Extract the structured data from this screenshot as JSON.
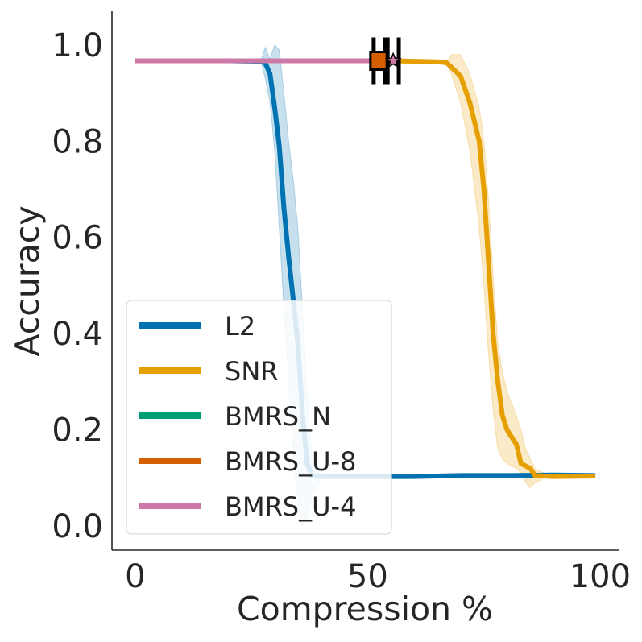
{
  "chart_data": {
    "type": "line",
    "xlabel": "Compression %",
    "ylabel": "Accuracy",
    "xlim": [
      -5,
      104
    ],
    "ylim": [
      -0.05,
      1.07
    ],
    "xticks": [
      0,
      50,
      100
    ],
    "yticks": [
      0.0,
      0.2,
      0.4,
      0.6,
      0.8,
      1.0
    ],
    "grid": false,
    "legend_position": "lower-left",
    "series": [
      {
        "name": "L2",
        "color": "#0072b2",
        "points": [
          [
            0,
            0.967
          ],
          [
            10,
            0.967
          ],
          [
            20,
            0.967
          ],
          [
            27,
            0.966
          ],
          [
            28,
            0.962
          ],
          [
            29,
            0.94
          ],
          [
            30,
            0.87
          ],
          [
            31,
            0.79
          ],
          [
            32,
            0.66
          ],
          [
            33,
            0.56
          ],
          [
            34,
            0.47
          ],
          [
            35,
            0.38
          ],
          [
            36,
            0.23
          ],
          [
            37,
            0.13
          ],
          [
            38,
            0.105
          ],
          [
            40,
            0.103
          ],
          [
            50,
            0.103
          ],
          [
            60,
            0.103
          ],
          [
            70,
            0.105
          ],
          [
            80,
            0.105
          ],
          [
            90,
            0.106
          ],
          [
            99,
            0.105
          ]
        ],
        "band": [
          [
            27,
            0.967,
            0.967
          ],
          [
            28,
            0.995,
            0.93
          ],
          [
            29,
            0.97,
            0.88
          ],
          [
            30,
            1.0,
            0.78
          ],
          [
            31,
            0.99,
            0.62
          ],
          [
            32,
            0.9,
            0.45
          ],
          [
            33,
            0.8,
            0.3
          ],
          [
            34,
            0.72,
            0.15
          ],
          [
            35,
            0.62,
            0.05
          ],
          [
            36,
            0.45,
            0.0
          ],
          [
            37,
            0.27,
            0.02
          ],
          [
            38,
            0.15,
            0.06
          ],
          [
            40,
            0.11,
            0.1
          ]
        ]
      },
      {
        "name": "SNR",
        "color": "#e69f00",
        "points": [
          [
            0,
            0.967
          ],
          [
            10,
            0.967
          ],
          [
            20,
            0.967
          ],
          [
            30,
            0.967
          ],
          [
            40,
            0.967
          ],
          [
            50,
            0.967
          ],
          [
            55,
            0.967
          ],
          [
            60,
            0.966
          ],
          [
            65,
            0.965
          ],
          [
            67,
            0.963
          ],
          [
            70,
            0.935
          ],
          [
            72,
            0.88
          ],
          [
            74,
            0.8
          ],
          [
            75,
            0.7
          ],
          [
            76,
            0.55
          ],
          [
            77,
            0.4
          ],
          [
            78,
            0.3
          ],
          [
            79,
            0.23
          ],
          [
            80,
            0.2
          ],
          [
            82,
            0.17
          ],
          [
            83,
            0.13
          ],
          [
            85,
            0.12
          ],
          [
            86,
            0.105
          ],
          [
            90,
            0.103
          ],
          [
            99,
            0.104
          ]
        ],
        "band": [
          [
            67,
            0.965,
            0.96
          ],
          [
            68,
            0.98,
            0.94
          ],
          [
            70,
            0.98,
            0.88
          ],
          [
            72,
            0.94,
            0.78
          ],
          [
            74,
            0.87,
            0.62
          ],
          [
            75,
            0.8,
            0.5
          ],
          [
            76,
            0.68,
            0.36
          ],
          [
            77,
            0.52,
            0.24
          ],
          [
            78,
            0.38,
            0.16
          ],
          [
            79,
            0.32,
            0.14
          ],
          [
            80,
            0.28,
            0.13
          ],
          [
            82,
            0.23,
            0.12
          ],
          [
            83,
            0.2,
            0.11
          ],
          [
            84,
            0.16,
            0.09
          ],
          [
            85,
            0.14,
            0.08
          ],
          [
            86,
            0.12,
            0.09
          ],
          [
            88,
            0.11,
            0.1
          ]
        ]
      },
      {
        "name": "BMRS_N",
        "color": "#009e73",
        "points": [
          [
            0,
            0.967
          ],
          [
            20,
            0.967
          ],
          [
            40,
            0.967
          ],
          [
            52,
            0.967
          ]
        ]
      },
      {
        "name": "BMRS_U-8",
        "color": "#d55e00",
        "points": [
          [
            0,
            0.967
          ],
          [
            20,
            0.967
          ],
          [
            40,
            0.967
          ],
          [
            52,
            0.967
          ]
        ],
        "marker": {
          "shape": "square",
          "x": 52.5,
          "y": 0.967,
          "x_err": 1.2
        }
      },
      {
        "name": "BMRS_U-4",
        "color": "#cc79a7",
        "points": [
          [
            0,
            0.967
          ],
          [
            20,
            0.967
          ],
          [
            40,
            0.967
          ],
          [
            55,
            0.967
          ]
        ],
        "marker": {
          "shape": "star",
          "x": 55.5,
          "y": 0.967,
          "x_err": 1.2
        }
      }
    ]
  }
}
